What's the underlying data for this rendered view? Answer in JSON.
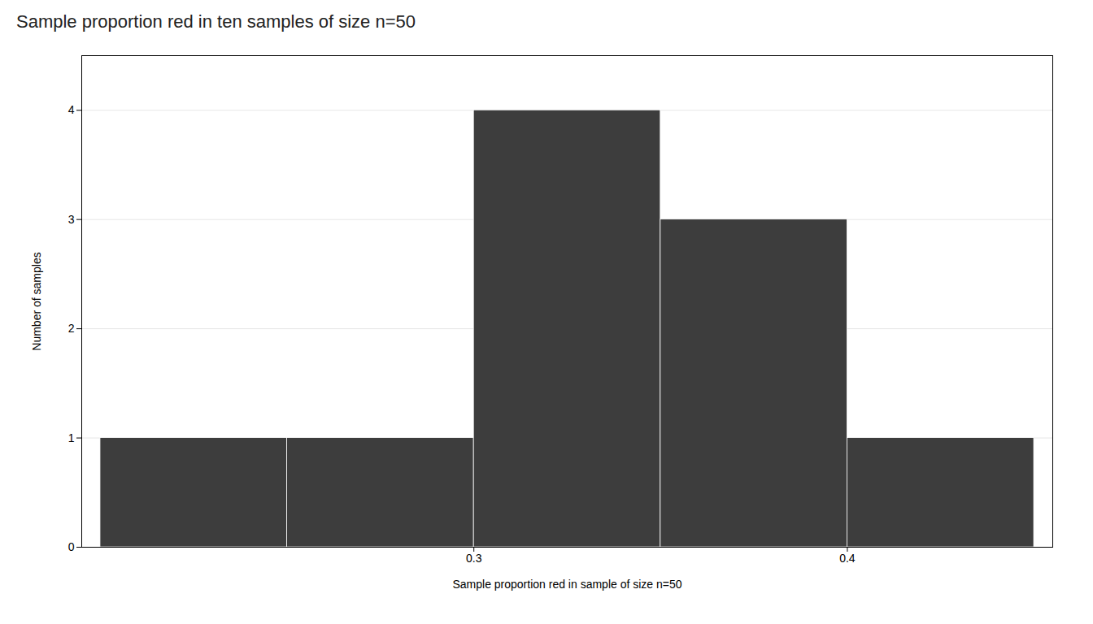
{
  "chart_data": {
    "type": "histogram",
    "title": "Sample proportion red in ten samples of size n=50",
    "xlabel": "Sample proportion red in sample of size n=50",
    "ylabel": "Number of samples",
    "bins": [
      0.2,
      0.25,
      0.3,
      0.35,
      0.4,
      0.45
    ],
    "values": [
      1,
      1,
      4,
      3,
      1
    ],
    "color": "#3d3d3d",
    "xlim": [
      0.195,
      0.455
    ],
    "ylim": [
      0,
      4.5
    ],
    "xticks": [
      0.3,
      0.4
    ],
    "yticks": [
      0,
      1,
      2,
      3,
      4
    ],
    "grid": true
  }
}
